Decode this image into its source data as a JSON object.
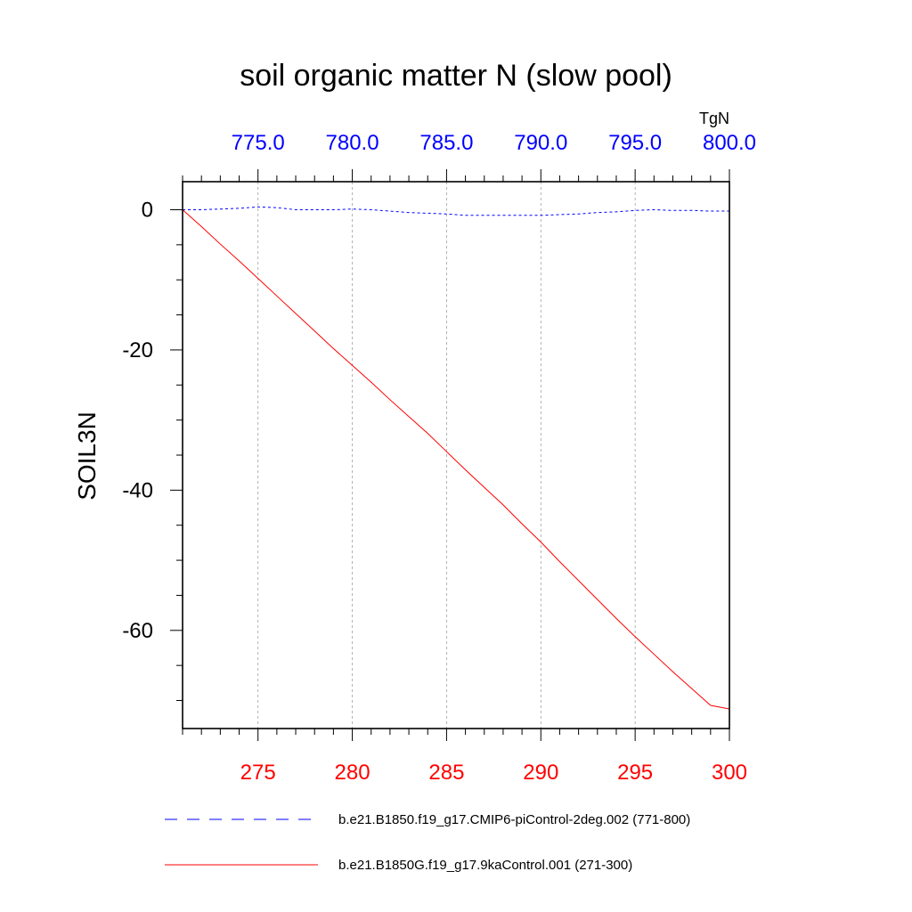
{
  "chart_data": {
    "type": "line",
    "title": "soil organic matter N (slow pool)",
    "ylabel": "SOIL3N",
    "units": "TgN",
    "ylim": [
      -74,
      4
    ],
    "y_ticks": [
      0,
      -20,
      -40,
      -60
    ],
    "bottom_axis": {
      "range": [
        271,
        300
      ],
      "ticks": [
        275,
        280,
        285,
        290,
        295,
        300
      ],
      "tick_labels": [
        "275",
        "280",
        "285",
        "290",
        "295",
        "300"
      ],
      "color": "#ff0000"
    },
    "top_axis": {
      "range": [
        771,
        800
      ],
      "ticks": [
        775,
        780,
        785,
        790,
        795,
        800
      ],
      "tick_labels": [
        "775.0",
        "780.0",
        "785.0",
        "790.0",
        "795.0",
        "800.0"
      ],
      "color": "#0000ff"
    },
    "grid": "vertical dashed at major ticks",
    "series": [
      {
        "name": "b.e21.B1850.f19_g17.CMIP6-piControl-2deg.002 (771-800)",
        "axis": "top",
        "color": "#0000ff",
        "style": "dashed",
        "x": [
          771,
          772,
          773,
          774,
          775,
          776,
          777,
          778,
          779,
          780,
          781,
          782,
          783,
          784,
          785,
          786,
          787,
          788,
          789,
          790,
          791,
          792,
          793,
          794,
          795,
          796,
          797,
          798,
          799,
          800
        ],
        "y": [
          0.0,
          0.0,
          0.1,
          0.2,
          0.4,
          0.3,
          0.0,
          0.0,
          0.0,
          0.1,
          0.0,
          -0.2,
          -0.4,
          -0.5,
          -0.6,
          -0.8,
          -0.8,
          -0.8,
          -0.8,
          -0.8,
          -0.7,
          -0.6,
          -0.4,
          -0.3,
          -0.1,
          0.0,
          -0.1,
          -0.1,
          -0.2,
          -0.2
        ]
      },
      {
        "name": "b.e21.B1850G.f19_g17.9kaControl.001 (271-300)",
        "axis": "bottom",
        "color": "#ff0000",
        "style": "solid",
        "x": [
          271,
          272,
          273,
          274,
          275,
          276,
          277,
          278,
          279,
          280,
          281,
          282,
          283,
          284,
          285,
          286,
          287,
          288,
          289,
          290,
          291,
          292,
          293,
          294,
          295,
          296,
          297,
          298,
          299,
          300
        ],
        "y": [
          0.0,
          -2.4,
          -4.9,
          -7.3,
          -9.8,
          -12.3,
          -14.8,
          -17.3,
          -19.8,
          -22.2,
          -24.6,
          -27.1,
          -29.5,
          -31.9,
          -34.5,
          -37.1,
          -39.6,
          -42.1,
          -44.8,
          -47.4,
          -50.2,
          -52.9,
          -55.6,
          -58.3,
          -60.9,
          -63.4,
          -65.9,
          -68.3,
          -70.7,
          -71.2
        ]
      }
    ]
  }
}
